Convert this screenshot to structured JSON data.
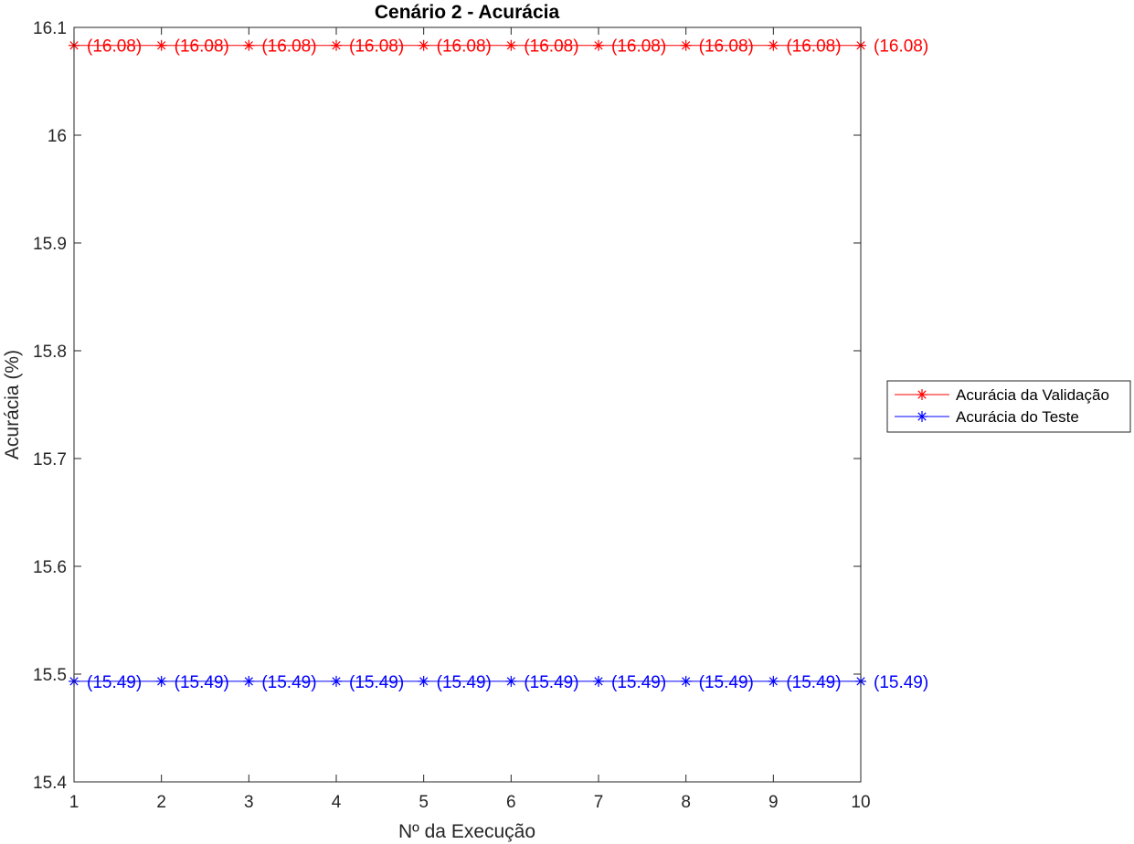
{
  "chart_data": {
    "type": "line",
    "title": "Cenário 2 - Acurácia",
    "xlabel": "Nº da Execução",
    "ylabel": "Acurácia (%)",
    "x": [
      1,
      2,
      3,
      4,
      5,
      6,
      7,
      8,
      9,
      10
    ],
    "xlim": [
      1,
      10
    ],
    "ylim": [
      15.4,
      16.1
    ],
    "xticks": [
      1,
      2,
      3,
      4,
      5,
      6,
      7,
      8,
      9,
      10
    ],
    "yticks": [
      15.4,
      15.5,
      15.6,
      15.7,
      15.8,
      15.9,
      16,
      16.1
    ],
    "grid": false,
    "legend_position": "outside-right",
    "series": [
      {
        "name": "Acurácia da Validação",
        "color": "#ff0000",
        "marker": "asterisk",
        "values": [
          16.0833,
          16.0833,
          16.0833,
          16.0833,
          16.0833,
          16.0833,
          16.0833,
          16.0833,
          16.0833,
          16.0833
        ],
        "labels": [
          "(16.08)",
          "(16.08)",
          "(16.08)",
          "(16.08)",
          "(16.08)",
          "(16.08)",
          "(16.08)",
          "(16.08)",
          "(16.08)",
          "(16.08)"
        ]
      },
      {
        "name": "Acurácia do Teste",
        "color": "#0000ff",
        "marker": "asterisk",
        "values": [
          15.4933,
          15.4933,
          15.4933,
          15.4933,
          15.4933,
          15.4933,
          15.4933,
          15.4933,
          15.4933,
          15.4933
        ],
        "labels": [
          "(15.49)",
          "(15.49)",
          "(15.49)",
          "(15.49)",
          "(15.49)",
          "(15.49)",
          "(15.49)",
          "(15.49)",
          "(15.49)",
          "(15.49)"
        ]
      }
    ]
  }
}
